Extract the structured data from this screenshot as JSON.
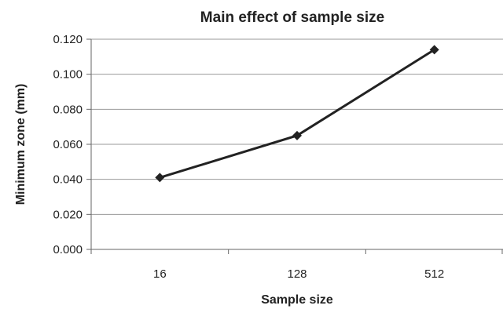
{
  "chart_data": {
    "type": "line",
    "title": "Main effect of sample size",
    "xlabel": "Sample size",
    "ylabel": "Minimum zone (mm)",
    "categories": [
      "16",
      "128",
      "512"
    ],
    "values": [
      0.041,
      0.065,
      0.114
    ],
    "ylim": [
      0,
      0.12
    ],
    "yticks": [
      "0.000",
      "0.020",
      "0.040",
      "0.060",
      "0.080",
      "0.100",
      "0.120"
    ],
    "grid": true,
    "legend": "none",
    "line_color": "#222222",
    "marker": "diamond"
  }
}
